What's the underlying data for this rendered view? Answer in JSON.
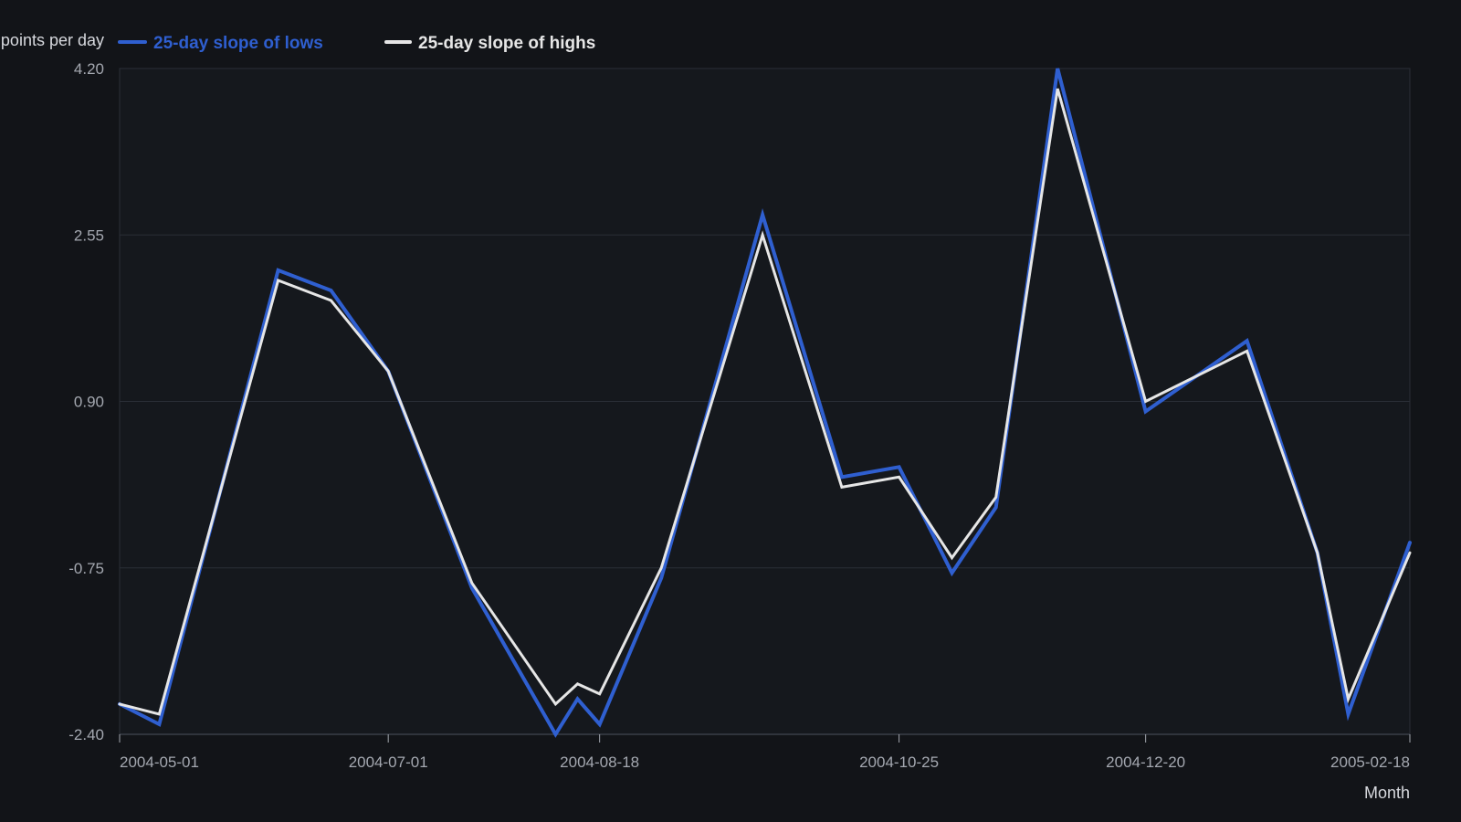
{
  "chart_data": {
    "type": "line",
    "title": "",
    "ylabel": "points per day",
    "xlabel": "Month",
    "ylim": [
      -2.4,
      4.2
    ],
    "yticks": [
      -2.4,
      -0.75,
      0.9,
      2.55,
      4.2
    ],
    "ytick_labels": [
      "-2.40",
      "-0.75",
      "0.90",
      "2.55",
      "4.20"
    ],
    "xlim": [
      "2004-05-01",
      "2005-02-18"
    ],
    "xticks": [
      "2004-05-01",
      "2004-07-01",
      "2004-08-18",
      "2004-10-25",
      "2004-12-20",
      "2005-02-18"
    ],
    "xtick_labels": [
      "2004-05-01",
      "2004-07-01",
      "2004-08-18",
      "2004-10-25",
      "2004-12-20",
      "2005-02-18"
    ],
    "grid": true,
    "legend_position": "top-left",
    "x": [
      "2004-05-01",
      "2004-05-10",
      "2004-06-06",
      "2004-06-18",
      "2004-07-01",
      "2004-07-20",
      "2004-08-08",
      "2004-08-13",
      "2004-08-18",
      "2004-09-01",
      "2004-09-24",
      "2004-10-12",
      "2004-10-25",
      "2004-11-06",
      "2004-11-16",
      "2004-11-30",
      "2004-12-20",
      "2005-01-12",
      "2005-01-28",
      "2005-02-04",
      "2005-02-18"
    ],
    "series": [
      {
        "name": "25-day slope of lows",
        "color": "#2f5fd0",
        "values": [
          -2.1,
          -2.3,
          2.2,
          2.0,
          1.2,
          -0.95,
          -2.4,
          -2.05,
          -2.3,
          -0.85,
          2.75,
          0.15,
          0.25,
          -0.8,
          -0.15,
          4.2,
          0.8,
          1.5,
          -0.6,
          -2.2,
          -0.5
        ]
      },
      {
        "name": "25-day slope of highs",
        "color": "#e6e6e6",
        "values": [
          -2.1,
          -2.2,
          2.1,
          1.9,
          1.2,
          -0.9,
          -2.1,
          -1.9,
          -2.0,
          -0.75,
          2.55,
          0.05,
          0.15,
          -0.65,
          -0.05,
          4.0,
          0.9,
          1.4,
          -0.6,
          -2.05,
          -0.6
        ]
      }
    ]
  }
}
